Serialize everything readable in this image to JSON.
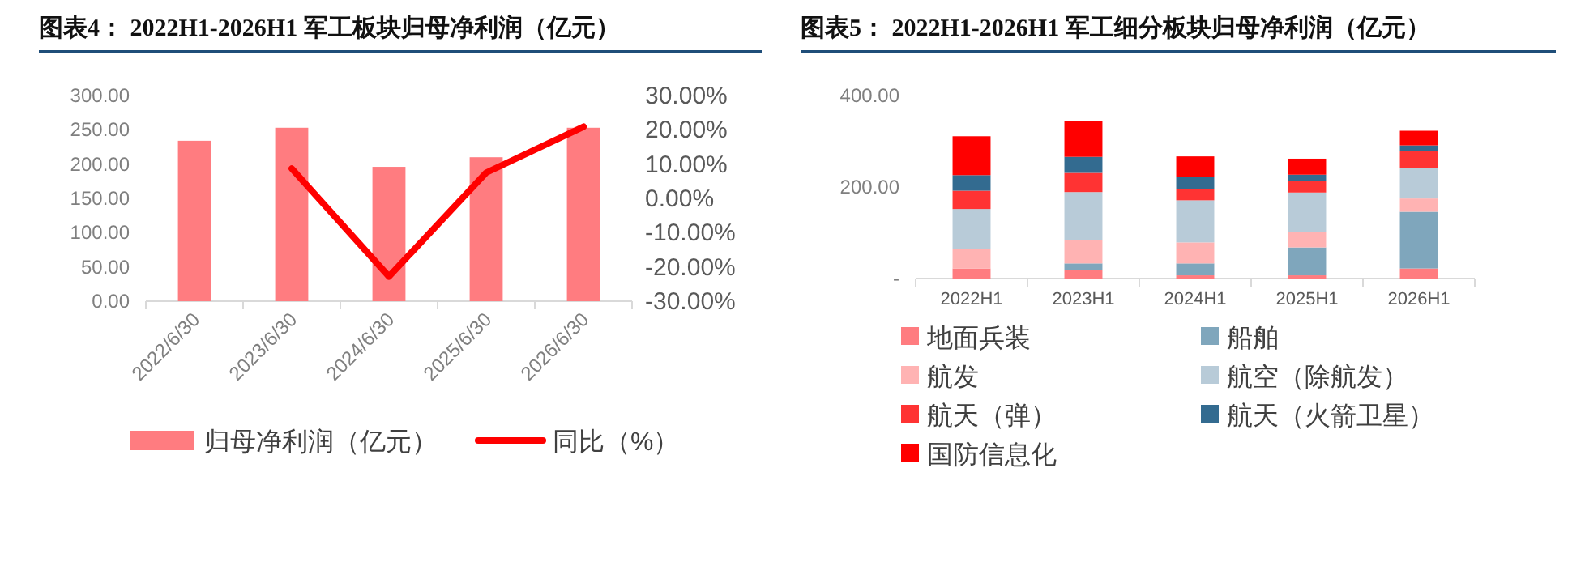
{
  "chart_data": [
    {
      "type": "bar",
      "title": "图表4： 2022H1-2026H1 军工板块归母净利润（亿元）",
      "categories": [
        "2022/6/30",
        "2023/6/30",
        "2024/6/30",
        "2025/6/30",
        "2026/6/30"
      ],
      "series": [
        {
          "name": "归母净利润（亿元）",
          "color": "#ff7c80",
          "values": [
            234,
            253,
            196,
            210,
            253
          ]
        },
        {
          "name": "同比（%）",
          "type": "line",
          "axis": "y2",
          "color": "#ff0000",
          "values": [
            null,
            8.7,
            -22.8,
            7.5,
            20.9
          ]
        }
      ],
      "ylim": [
        0,
        300
      ],
      "yticks": [
        {
          "value": 0,
          "label": "0.00"
        },
        {
          "value": 50,
          "label": "50.00"
        },
        {
          "value": 100,
          "label": "100.00"
        },
        {
          "value": 150,
          "label": "150.00"
        },
        {
          "value": 200,
          "label": "200.00"
        },
        {
          "value": 250,
          "label": "250.00"
        },
        {
          "value": 300,
          "label": "300.00"
        }
      ],
      "y2lim": [
        -30,
        30
      ],
      "y2ticks": [
        {
          "value": -30,
          "label": "-30.00%"
        },
        {
          "value": -20,
          "label": "-20.00%"
        },
        {
          "value": -10,
          "label": "-10.00%"
        },
        {
          "value": 0,
          "label": "0.00%"
        },
        {
          "value": 10,
          "label": "10.00%"
        },
        {
          "value": 20,
          "label": "20.00%"
        },
        {
          "value": 30,
          "label": "30.00%"
        }
      ],
      "legend": "bottom"
    },
    {
      "type": "bar",
      "stacked": true,
      "title": "图表5： 2022H1-2026H1 军工细分板块归母净利润（亿元）",
      "categories": [
        "2022H1",
        "2023H1",
        "2024H1",
        "2025H1",
        "2026H1"
      ],
      "series": [
        {
          "name": "地面兵装",
          "color": "#ff7c80",
          "values": [
            22,
            19,
            7,
            7,
            22
          ]
        },
        {
          "name": "船舶",
          "color": "#7fa6bc",
          "values": [
            0,
            14,
            26,
            61,
            124
          ]
        },
        {
          "name": "航发",
          "color": "#ffb3b3",
          "values": [
            42,
            51,
            46,
            33,
            29
          ]
        },
        {
          "name": "航空（除航发）",
          "color": "#b8cbd8",
          "values": [
            88,
            105,
            92,
            87,
            66
          ]
        },
        {
          "name": "航天（弹）",
          "color": "#ff3333",
          "values": [
            40,
            42,
            25,
            26,
            38
          ]
        },
        {
          "name": "航天（火箭卫星）",
          "color": "#336b90",
          "values": [
            34,
            35,
            26,
            13,
            12
          ]
        },
        {
          "name": "国防信息化",
          "color": "#ff0000",
          "values": [
            85,
            79,
            45,
            35,
            32
          ]
        }
      ],
      "ylim": [
        0,
        400
      ],
      "yticks": [
        {
          "value": 0,
          "label": "-"
        },
        {
          "value": 200,
          "label": "200.00"
        },
        {
          "value": 400,
          "label": "400.00"
        }
      ],
      "legend": "bottom"
    }
  ]
}
